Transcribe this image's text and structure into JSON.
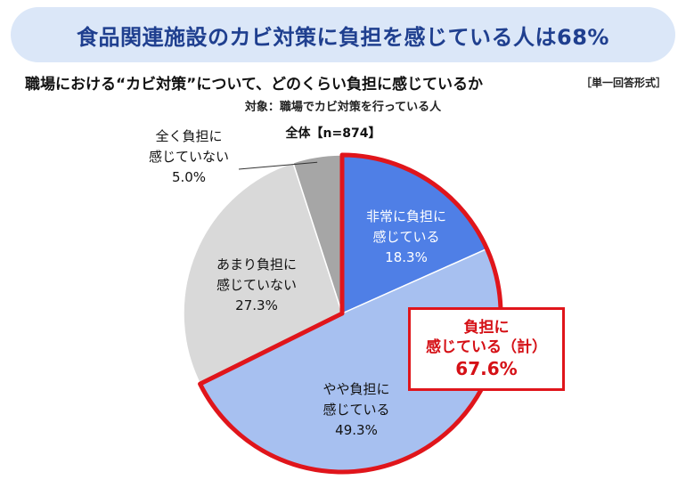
{
  "banner_title": "食品関連施設のカビ対策に負担を感じている人は68%",
  "question": "職場における“カビ対策”について、どのくらい負担に感じているか",
  "answer_type": "［単一回答形式］",
  "target": "対象：職場でカビ対策を行っている人",
  "colors": {
    "very": "#4f7fe6",
    "somewhat": "#a7c0f0",
    "not_much": "#d9d9d9",
    "not_at_all": "#a6a6a6",
    "highlight": "#e0151b"
  },
  "chart_data": {
    "type": "pie",
    "title": "全体【n=874】",
    "slices": [
      {
        "label_lines": [
          "非常に負担に",
          "感じている"
        ],
        "value_text": "18.3%",
        "value": 18.3
      },
      {
        "label_lines": [
          "やや負担に",
          "感じている"
        ],
        "value_text": "49.3%",
        "value": 49.3
      },
      {
        "label_lines": [
          "あまり負担に",
          "感じていない"
        ],
        "value_text": "27.3%",
        "value": 27.3
      },
      {
        "label_lines": [
          "全く負担に",
          "感じていない"
        ],
        "value_text": "5.0%",
        "value": 5.0
      }
    ],
    "combined": {
      "line1": "負担に",
      "line2": "感じている（計）",
      "value_text": "67.6%",
      "value": 67.6
    }
  }
}
